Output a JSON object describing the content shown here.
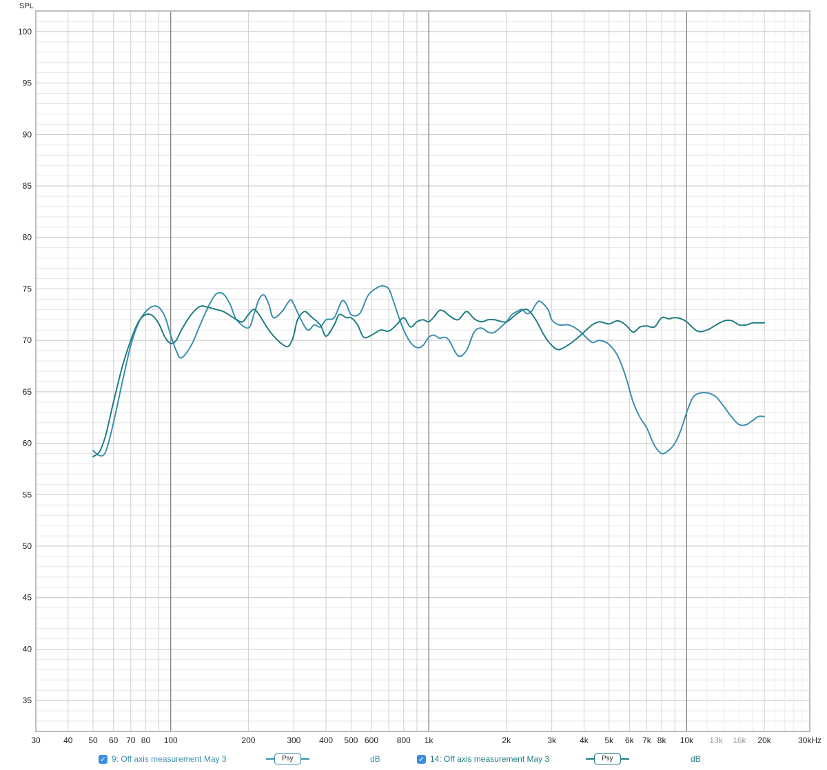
{
  "chart_data": {
    "type": "line",
    "ylabel": "SPL",
    "ylim": [
      32,
      102
    ],
    "xlim": [
      30,
      30000
    ],
    "x_scale": "log",
    "grid": true,
    "y_ticks": [
      35,
      40,
      45,
      50,
      55,
      60,
      65,
      70,
      75,
      80,
      85,
      90,
      95,
      100
    ],
    "x_ticks": [
      {
        "value": 30,
        "label": "30"
      },
      {
        "value": 40,
        "label": "40"
      },
      {
        "value": 50,
        "label": "50"
      },
      {
        "value": 60,
        "label": "60"
      },
      {
        "value": 70,
        "label": "70"
      },
      {
        "value": 80,
        "label": "80"
      },
      {
        "value": 100,
        "label": "100"
      },
      {
        "value": 200,
        "label": "200"
      },
      {
        "value": 300,
        "label": "300"
      },
      {
        "value": 400,
        "label": "400"
      },
      {
        "value": 500,
        "label": "500"
      },
      {
        "value": 600,
        "label": "600"
      },
      {
        "value": 800,
        "label": "800"
      },
      {
        "value": 1000,
        "label": "1k"
      },
      {
        "value": 2000,
        "label": "2k"
      },
      {
        "value": 3000,
        "label": "3k"
      },
      {
        "value": 4000,
        "label": "4k"
      },
      {
        "value": 5000,
        "label": "5k"
      },
      {
        "value": 6000,
        "label": "6k"
      },
      {
        "value": 7000,
        "label": "7k"
      },
      {
        "value": 8000,
        "label": "8k"
      },
      {
        "value": 10000,
        "label": "10k"
      },
      {
        "value": 13000,
        "label": "13k",
        "dim": true
      },
      {
        "value": 16000,
        "label": "16k",
        "dim": true
      },
      {
        "value": 20000,
        "label": "20k"
      },
      {
        "value": 30000,
        "label": "30kHz"
      }
    ],
    "series": [
      {
        "name": "9: Off axis measurement May 3",
        "color": "#3a8fae",
        "x": [
          50,
          53,
          56,
          60,
          65,
          70,
          75,
          80,
          85,
          90,
          95,
          100,
          105,
          110,
          120,
          130,
          140,
          150,
          160,
          170,
          180,
          200,
          210,
          220,
          230,
          240,
          250,
          270,
          290,
          300,
          320,
          340,
          360,
          380,
          400,
          430,
          460,
          480,
          500,
          540,
          580,
          620,
          660,
          700,
          730,
          760,
          800,
          850,
          900,
          950,
          1000,
          1050,
          1100,
          1150,
          1200,
          1300,
          1400,
          1500,
          1600,
          1700,
          1800,
          2000,
          2100,
          2200,
          2300,
          2400,
          2500,
          2600,
          2700,
          2900,
          3000,
          3200,
          3500,
          3800,
          4000,
          4300,
          4600,
          5000,
          5400,
          5800,
          6200,
          6600,
          7000,
          7500,
          8000,
          8500,
          9000,
          9500,
          10000,
          10500,
          11000,
          12000,
          13000,
          14000,
          15000,
          16000,
          17000,
          18000,
          19000,
          20000
        ],
        "values": [
          59.3,
          58.8,
          59.2,
          62.0,
          66.0,
          69.5,
          71.7,
          72.8,
          73.3,
          73.2,
          72.3,
          70.5,
          69.0,
          68.3,
          69.5,
          71.5,
          73.3,
          74.5,
          74.5,
          73.5,
          72.0,
          71.2,
          72.5,
          74.0,
          74.4,
          73.5,
          72.2,
          72.8,
          73.9,
          73.5,
          72.0,
          71.0,
          71.5,
          71.3,
          72.0,
          72.2,
          73.8,
          73.5,
          72.5,
          72.6,
          74.3,
          75.0,
          75.3,
          75.0,
          73.8,
          72.5,
          71.0,
          69.8,
          69.3,
          69.5,
          70.3,
          70.5,
          70.2,
          70.3,
          70.0,
          68.5,
          69.0,
          70.8,
          71.2,
          70.8,
          70.8,
          71.8,
          72.5,
          72.8,
          73.0,
          72.6,
          72.8,
          73.5,
          73.8,
          73.0,
          72.0,
          71.5,
          71.5,
          71.0,
          70.5,
          69.8,
          70.0,
          69.6,
          68.5,
          66.5,
          64.0,
          62.5,
          61.5,
          59.8,
          59.0,
          59.3,
          60.0,
          61.3,
          63.0,
          64.3,
          64.8,
          64.9,
          64.5,
          63.5,
          62.5,
          61.8,
          61.8,
          62.2,
          62.6,
          62.6
        ]
      },
      {
        "name": "14: Off axis measurement May 3",
        "color": "#1e7d82",
        "x": [
          50,
          53,
          56,
          60,
          65,
          70,
          75,
          80,
          85,
          90,
          95,
          100,
          105,
          110,
          120,
          130,
          140,
          150,
          160,
          170,
          180,
          190,
          200,
          210,
          220,
          240,
          260,
          280,
          290,
          300,
          310,
          330,
          350,
          380,
          400,
          430,
          450,
          480,
          500,
          530,
          560,
          600,
          650,
          700,
          750,
          800,
          850,
          900,
          950,
          1000,
          1050,
          1100,
          1150,
          1200,
          1300,
          1400,
          1500,
          1600,
          1700,
          1800,
          2000,
          2200,
          2400,
          2600,
          2800,
          3000,
          3200,
          3500,
          3800,
          4000,
          4300,
          4600,
          5000,
          5400,
          5800,
          6200,
          6600,
          7000,
          7500,
          8000,
          8500,
          9000,
          9500,
          10000,
          11000,
          12000,
          13000,
          14000,
          15000,
          16000,
          17000,
          18000,
          19000,
          20000
        ],
        "values": [
          58.7,
          59.2,
          60.8,
          64.0,
          67.5,
          70.0,
          71.8,
          72.5,
          72.4,
          71.6,
          70.3,
          69.7,
          70.0,
          71.0,
          72.5,
          73.3,
          73.2,
          73.0,
          72.8,
          72.4,
          72.0,
          71.8,
          72.5,
          73.0,
          72.5,
          71.0,
          70.0,
          69.4,
          69.6,
          70.5,
          72.0,
          72.8,
          72.3,
          71.5,
          70.4,
          71.5,
          72.5,
          72.2,
          72.2,
          71.5,
          70.3,
          70.5,
          71.0,
          70.9,
          71.5,
          72.2,
          71.3,
          71.8,
          72.0,
          71.8,
          72.3,
          72.9,
          72.8,
          72.4,
          72.0,
          72.8,
          72.1,
          71.8,
          72.0,
          72.0,
          71.8,
          72.6,
          73.0,
          72.0,
          70.5,
          69.5,
          69.1,
          69.6,
          70.3,
          70.8,
          71.5,
          71.8,
          71.6,
          71.9,
          71.5,
          70.8,
          71.3,
          71.4,
          71.3,
          72.2,
          72.1,
          72.2,
          72.1,
          71.8,
          70.9,
          71.0,
          71.5,
          71.9,
          71.9,
          71.5,
          71.5,
          71.7,
          71.7,
          71.7
        ]
      }
    ]
  },
  "legend": [
    {
      "checked_glyph": "✓",
      "name": "9: Off axis measurement May 3",
      "psy": "Psy",
      "unit": "dB",
      "color": "#3a8fae"
    },
    {
      "checked_glyph": "✓",
      "name": "14: Off axis measurement May 3",
      "psy": "Psy",
      "unit": "dB",
      "color": "#1e7d82"
    }
  ]
}
